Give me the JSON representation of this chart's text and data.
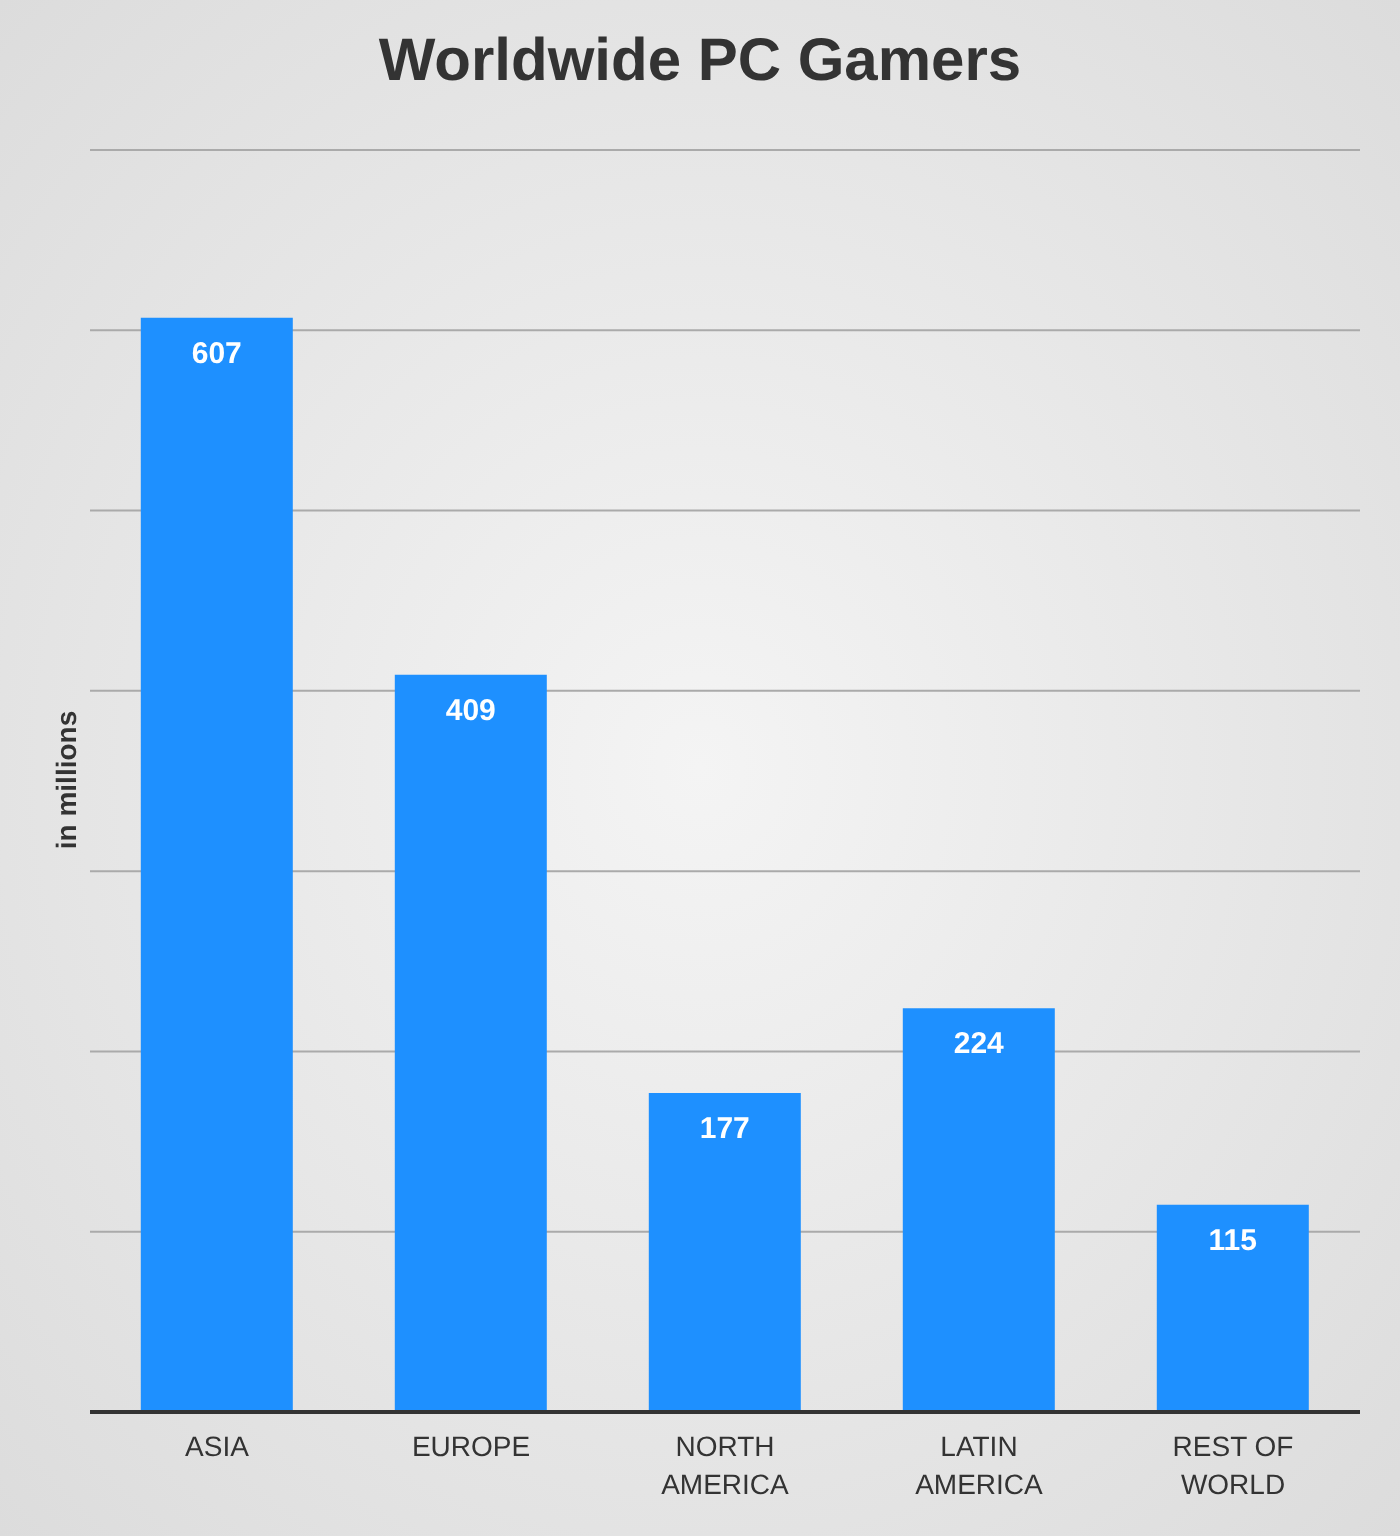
{
  "chart_data": {
    "type": "bar",
    "title": "Worldwide PC Gamers",
    "ylabel": "in millions",
    "categories": [
      "ASIA",
      "EUROPE",
      "NORTH AMERICA",
      "LATIN AMERICA",
      "REST OF WORLD"
    ],
    "values": [
      607,
      409,
      177,
      224,
      115
    ],
    "color": "#1e90ff",
    "ylim": [
      0,
      700
    ],
    "yticks": [
      {
        "value": 0,
        "label": null
      },
      {
        "value": 100,
        "label": null
      },
      {
        "value": 200,
        "label": null
      },
      {
        "value": 300,
        "label": null
      },
      {
        "value": 400,
        "label": null
      },
      {
        "value": 500,
        "label": null
      },
      {
        "value": 600,
        "label": null
      },
      {
        "value": 700,
        "label": null
      }
    ],
    "tick_labels": "x",
    "grid": "y",
    "data_labels": true
  }
}
